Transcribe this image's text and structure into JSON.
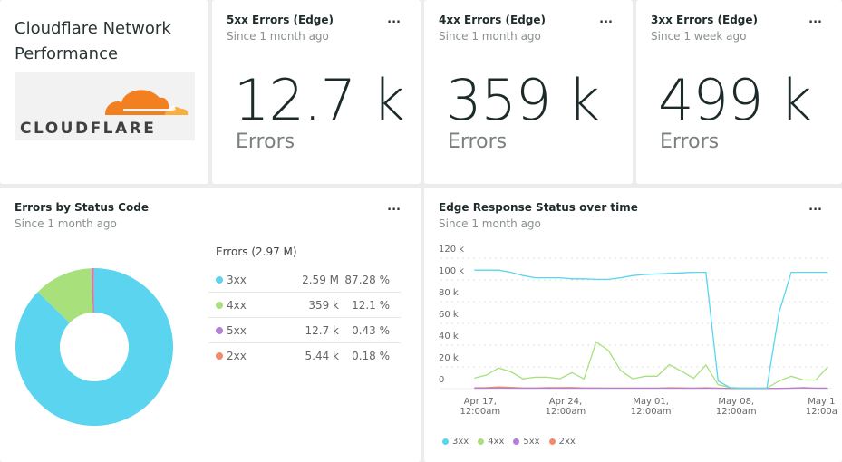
{
  "header": {
    "title_line1": "Cloudflare Network",
    "title_line2": "Performance",
    "logo_text": "CLOUDFLARE"
  },
  "cards": [
    {
      "title": "5xx Errors (Edge)",
      "subtitle": "Since 1 month ago",
      "value": "12.7 k",
      "unit": "Errors",
      "menu": "..."
    },
    {
      "title": "4xx Errors (Edge)",
      "subtitle": "Since 1 month ago",
      "value": "359 k",
      "unit": "Errors",
      "menu": "..."
    },
    {
      "title": "3xx Errors (Edge)",
      "subtitle": "Since 1 week ago",
      "value": "499 k",
      "unit": "Errors",
      "menu": "..."
    }
  ],
  "status_panel": {
    "title": "Errors by Status Code",
    "subtitle": "Since 1 month ago",
    "menu": "...",
    "table_title": "Errors (2.97 M)",
    "rows": [
      {
        "label": "3xx",
        "value": "2.59 M",
        "percent": "87.28 %",
        "color": "#5bd4f0"
      },
      {
        "label": "4xx",
        "value": "359 k",
        "percent": "12.1 %",
        "color": "#a8e07c"
      },
      {
        "label": "5xx",
        "value": "12.7 k",
        "percent": "0.43 %",
        "color": "#b57ed9"
      },
      {
        "label": "2xx",
        "value": "5.44 k",
        "percent": "0.18 %",
        "color": "#f5896a"
      }
    ]
  },
  "time_panel": {
    "title": "Edge Response Status over time",
    "subtitle": "Since 1 month ago",
    "menu": "..."
  },
  "chart_data": [
    {
      "type": "pie",
      "donut": true,
      "categories": [
        "3xx",
        "4xx",
        "5xx",
        "2xx"
      ],
      "values": [
        87.28,
        12.1,
        0.43,
        0.18
      ],
      "colors": [
        "#5bd4f0",
        "#a8e07c",
        "#b57ed9",
        "#f5896a"
      ]
    },
    {
      "type": "line",
      "ylim": [
        0,
        120000
      ],
      "yticks": [
        "0",
        "20 k",
        "40 k",
        "60 k",
        "80 k",
        "100 k",
        "120 k"
      ],
      "xticks": [
        [
          "Apr 17,",
          "12:00am"
        ],
        [
          "Apr 24,",
          "12:00am"
        ],
        [
          "May 01,",
          "12:00am"
        ],
        [
          "May 08,",
          "12:00am"
        ],
        [
          "May 1",
          "12:00a"
        ]
      ],
      "x": [
        "Apr 16",
        "Apr 17",
        "Apr 18",
        "Apr 19",
        "Apr 20",
        "Apr 21",
        "Apr 22",
        "Apr 23",
        "Apr 24",
        "Apr 25",
        "Apr 26",
        "Apr 27",
        "Apr 28",
        "Apr 29",
        "Apr 30",
        "May 01",
        "May 02",
        "May 03",
        "May 04",
        "May 05",
        "May 06",
        "May 07",
        "May 08",
        "May 09",
        "May 10",
        "May 11",
        "May 12",
        "May 13",
        "May 14",
        "May 15"
      ],
      "grid": true,
      "legend": "bottom",
      "series": [
        {
          "name": "3xx",
          "color": "#5bd4f0",
          "values": [
            109000,
            109000,
            109000,
            107000,
            104000,
            102000,
            102000,
            102000,
            101000,
            101000,
            100500,
            100500,
            102000,
            104000,
            105000,
            105500,
            106000,
            106500,
            107000,
            107000,
            7000,
            800,
            500,
            500,
            500,
            70000,
            107000,
            107000,
            107000,
            107000
          ]
        },
        {
          "name": "4xx",
          "color": "#a8e07c",
          "values": [
            9700,
            12500,
            19000,
            15500,
            9000,
            10500,
            10500,
            9000,
            14700,
            9000,
            43000,
            35000,
            16700,
            9000,
            11400,
            11400,
            22000,
            16000,
            9500,
            21700,
            3600,
            1000,
            500,
            500,
            500,
            7000,
            11400,
            8000,
            7800,
            20000
          ]
        },
        {
          "name": "5xx",
          "color": "#b57ed9",
          "values": [
            400,
            400,
            500,
            400,
            400,
            400,
            400,
            400,
            400,
            400,
            400,
            400,
            400,
            400,
            400,
            400,
            400,
            400,
            400,
            400,
            400,
            300,
            200,
            200,
            200,
            300,
            400,
            900,
            400,
            400
          ]
        },
        {
          "name": "2xx",
          "color": "#f5896a",
          "values": [
            800,
            900,
            1500,
            1100,
            600,
            600,
            900,
            900,
            1000,
            600,
            600,
            500,
            500,
            500,
            500,
            500,
            800,
            700,
            500,
            800,
            400,
            200,
            200,
            200,
            200,
            300,
            500,
            600,
            500,
            500
          ]
        }
      ]
    }
  ]
}
